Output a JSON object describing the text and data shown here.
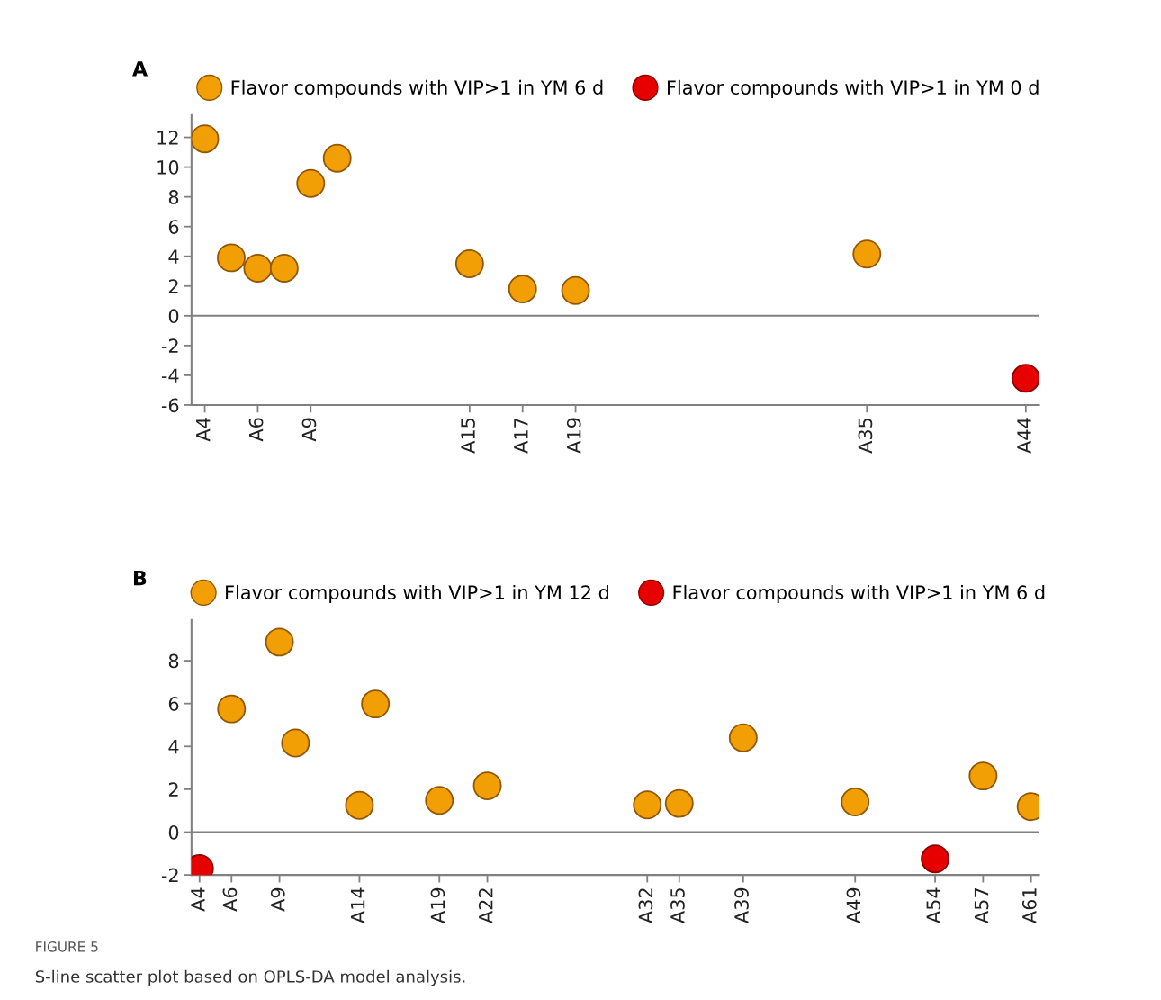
{
  "chart_data": [
    {
      "type": "scatter",
      "title": "A",
      "marker": "circle",
      "legend": "top",
      "grid": false,
      "categories": [
        "A4",
        null,
        "A6",
        null,
        "A9",
        null,
        null,
        null,
        null,
        null,
        "A15",
        null,
        "A17",
        null,
        "A19",
        null,
        null,
        null,
        null,
        null,
        null,
        null,
        null,
        null,
        null,
        "A35",
        null,
        null,
        null,
        null,
        null,
        "A44"
      ],
      "ylim": [
        -6,
        13.5
      ],
      "yticks": [
        -6,
        -4,
        -2,
        0,
        2,
        4,
        6,
        8,
        10,
        12
      ],
      "ref_lines": [
        {
          "axis": "y",
          "value": 0,
          "color": "#808080"
        }
      ],
      "series": [
        {
          "name": "Flavor compounds with VIP>1 in YM 6 d",
          "color": "#f29f05",
          "values": [
            11.9,
            3.9,
            3.2,
            3.2,
            8.9,
            10.6,
            null,
            null,
            null,
            null,
            3.5,
            null,
            1.8,
            null,
            1.7,
            null,
            null,
            null,
            null,
            null,
            null,
            null,
            null,
            null,
            null,
            4.15,
            null,
            null,
            null,
            null,
            null,
            null
          ]
        },
        {
          "name": "Flavor compounds with VIP>1 in YM 0 d",
          "color": "#e60000",
          "values": [
            null,
            null,
            null,
            null,
            null,
            null,
            null,
            null,
            null,
            null,
            null,
            null,
            null,
            null,
            null,
            null,
            null,
            null,
            null,
            null,
            null,
            null,
            null,
            null,
            null,
            null,
            null,
            null,
            null,
            null,
            null,
            -4.2
          ]
        }
      ]
    },
    {
      "type": "scatter",
      "title": "B",
      "marker": "circle",
      "legend": "top",
      "grid": false,
      "categories": [
        "A4",
        null,
        "A6",
        null,
        null,
        "A9",
        null,
        null,
        null,
        null,
        "A14",
        null,
        null,
        null,
        null,
        "A19",
        null,
        null,
        "A22",
        null,
        null,
        null,
        null,
        null,
        null,
        null,
        null,
        null,
        "A32",
        null,
        "A35",
        null,
        null,
        null,
        "A39",
        null,
        null,
        null,
        null,
        null,
        null,
        "A49",
        null,
        null,
        null,
        null,
        "A54",
        null,
        null,
        "A57",
        null,
        null,
        "A61"
      ],
      "ylim": [
        -2,
        9.9
      ],
      "yticks": [
        -2,
        0,
        2,
        4,
        6,
        8
      ],
      "ref_lines": [
        {
          "axis": "y",
          "value": 0,
          "color": "#808080"
        }
      ],
      "annotations": [
        "FIGURE 5",
        "S-line scatter plot based on OPLS-DA model analysis."
      ],
      "series": [
        {
          "name": "Flavor compounds with VIP>1 in YM 12 d",
          "color": "#f29f05",
          "values": [
            null,
            null,
            5.75,
            null,
            null,
            8.87,
            4.16,
            null,
            null,
            null,
            1.25,
            5.98,
            null,
            null,
            null,
            1.48,
            null,
            null,
            2.16,
            null,
            null,
            null,
            null,
            null,
            null,
            null,
            null,
            null,
            1.27,
            null,
            1.34,
            null,
            null,
            null,
            4.4,
            null,
            null,
            null,
            null,
            null,
            null,
            1.41,
            null,
            null,
            null,
            null,
            null,
            null,
            null,
            2.62,
            null,
            null,
            1.19
          ]
        },
        {
          "name": "Flavor compounds with VIP>1 in YM 6 d",
          "color": "#e60000",
          "values": [
            -1.7,
            null,
            null,
            null,
            null,
            null,
            null,
            null,
            null,
            null,
            null,
            null,
            null,
            null,
            null,
            null,
            null,
            null,
            null,
            null,
            null,
            null,
            null,
            null,
            null,
            null,
            null,
            null,
            null,
            null,
            null,
            null,
            null,
            null,
            null,
            null,
            null,
            null,
            null,
            null,
            null,
            null,
            null,
            null,
            null,
            null,
            -1.25,
            null,
            null,
            null,
            null,
            null,
            null
          ]
        }
      ]
    }
  ]
}
